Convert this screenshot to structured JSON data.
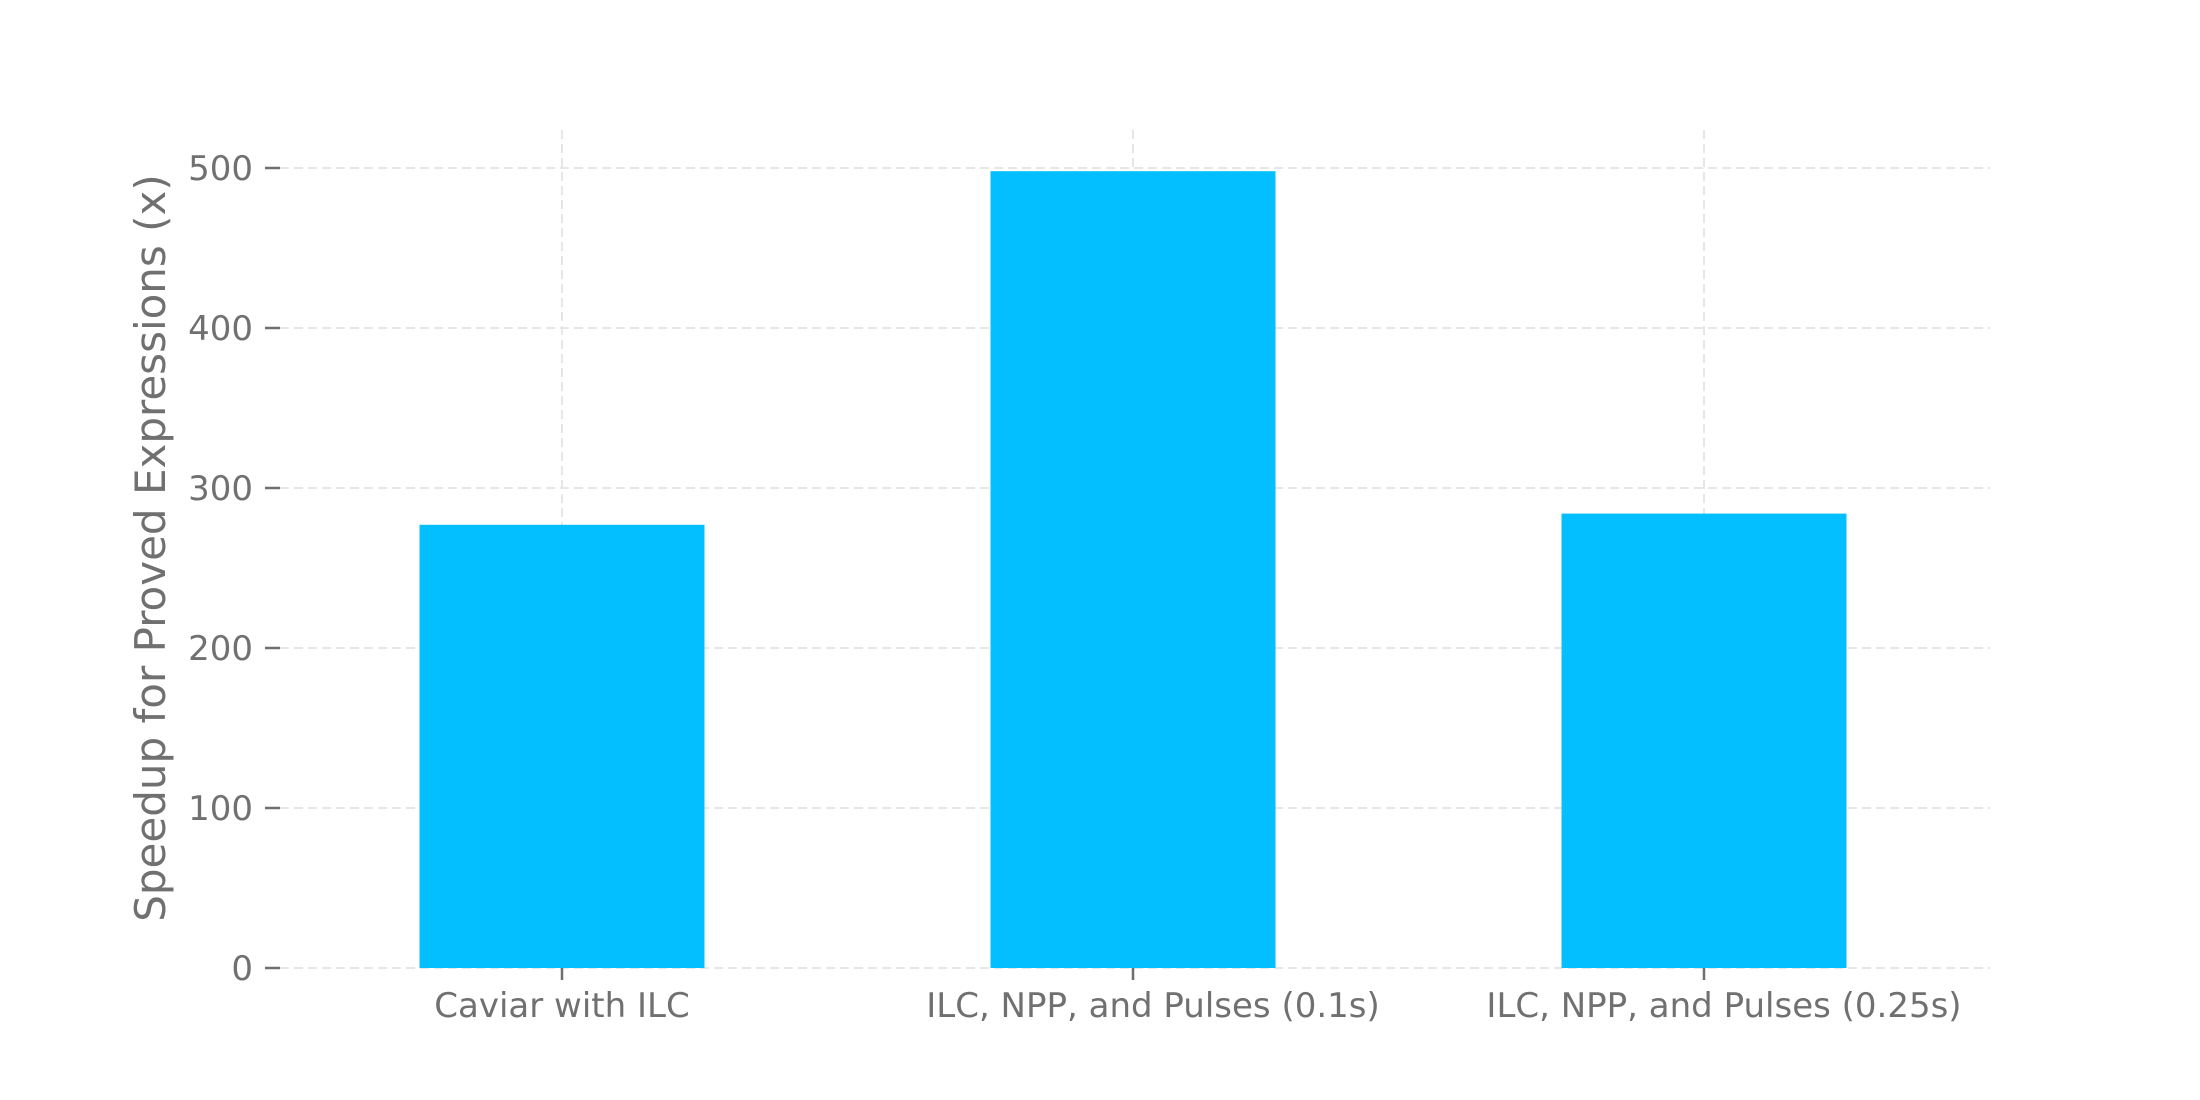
{
  "chart_data": {
    "type": "bar",
    "categories": [
      "Caviar with ILC",
      "ILC, NPP, and Pulses (0.1s)",
      "ILC, NPP, and Pulses (0.25s)"
    ],
    "values": [
      277,
      498,
      284
    ],
    "title": "",
    "xlabel": "",
    "ylabel": "Speedup for Proved Expressions (x)",
    "ylim": [
      0,
      525
    ],
    "yticks": [
      0,
      100,
      200,
      300,
      400,
      500
    ],
    "grid": true,
    "bar_color": "#03bfff",
    "text_color": "#707070",
    "grid_color": "#e6e6e6"
  }
}
